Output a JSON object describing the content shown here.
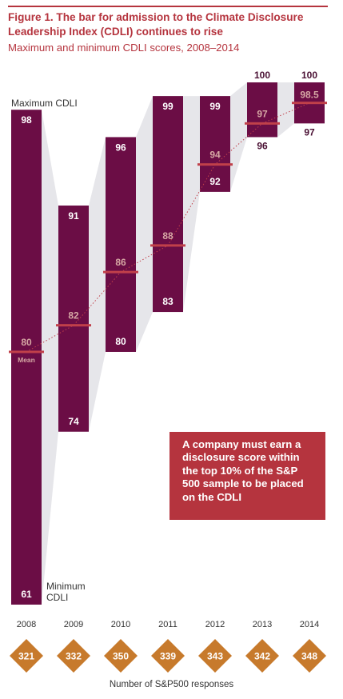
{
  "figure": {
    "title": "Figure 1. The bar for admission to the Climate Disclosure Leadership Index (CDLI) continues to rise",
    "subtitle": "Maximum and minimum CDLI scores, 2008–2014",
    "callout": "A company must earn a disclosure score within the top 10% of the S&P 500 sample to be placed on the CDLI",
    "footer": "Number of S&P500 responses"
  },
  "chart_data": {
    "type": "bar",
    "categories": [
      "2008",
      "2009",
      "2010",
      "2011",
      "2012",
      "2013",
      "2014"
    ],
    "max_labels": [
      "98",
      "91",
      "96",
      "99",
      "99",
      "100",
      "100"
    ],
    "min_labels": [
      "61",
      "74",
      "80",
      "83",
      "92",
      "96",
      "97"
    ],
    "mean_labels": [
      "80",
      "82",
      "86",
      "88",
      "94",
      "97",
      "98.5"
    ],
    "series": [
      {
        "name": "Maximum CDLI",
        "values": [
          98,
          91,
          96,
          99,
          99,
          100,
          100
        ]
      },
      {
        "name": "Minimum CDLI",
        "values": [
          61,
          74,
          80,
          83,
          92,
          96,
          97
        ]
      },
      {
        "name": "Mean",
        "values": [
          80,
          82,
          86,
          88,
          94,
          97,
          98.5
        ]
      }
    ],
    "responses": [
      "321",
      "332",
      "350",
      "339",
      "343",
      "342",
      "348"
    ],
    "annotations": {
      "max": "Maximum CDLI",
      "min": "Minimum CDLI",
      "mean": "Mean"
    },
    "colors": {
      "bar": "#6b0d45",
      "mean": "#c0404a",
      "band": "#e6e6ea",
      "diamond": "#c77a2c",
      "accent": "#b5343e",
      "mean_text": "#d6a8a4"
    }
  }
}
